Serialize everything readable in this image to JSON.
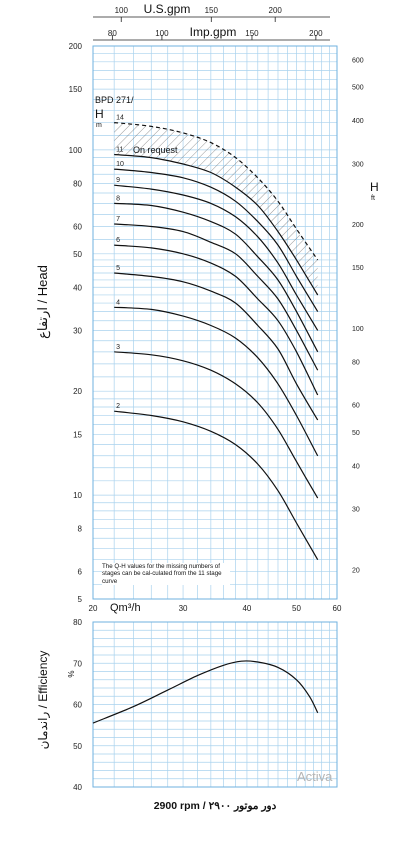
{
  "chart_data": [
    {
      "type": "line",
      "title": "BPD 271/",
      "top_axes": {
        "us_gpm": {
          "label": "U.S.gpm",
          "ticks": [
            100,
            150,
            200
          ]
        },
        "imp_gpm": {
          "label": "Imp.gpm",
          "ticks": [
            80,
            100,
            150,
            200
          ]
        }
      },
      "xlabel": "Qm³/h",
      "xlim": [
        20,
        60
      ],
      "x_ticks": [
        20,
        30,
        40,
        50,
        60
      ],
      "ylabel": "ارتفاع / Head",
      "y_unit_label": "H",
      "y_unit": "m",
      "y_scale": "log",
      "ylim": [
        5,
        200
      ],
      "y_ticks": [
        5,
        6,
        8,
        10,
        15,
        20,
        30,
        40,
        50,
        60,
        80,
        100,
        150,
        200
      ],
      "y2_unit_label": "H",
      "y2_unit": "ft",
      "y2_ticks": [
        20,
        30,
        40,
        50,
        60,
        80,
        100,
        150,
        200,
        300,
        400,
        500,
        600
      ],
      "note_on_request": "On request",
      "note_missing": "The Q-H values for the missing numbers of stages can be cal-culated from the 11 stage curve",
      "series": [
        {
          "name": "14",
          "dashed": true,
          "x": [
            22,
            26,
            30,
            34,
            38,
            42,
            46,
            50,
            55
          ],
          "y": [
            120,
            117,
            112,
            105,
            95,
            83,
            71,
            59,
            48
          ]
        },
        {
          "name": "11",
          "x": [
            22,
            26,
            30,
            34,
            38,
            42,
            46,
            50,
            55
          ],
          "y": [
            97,
            95,
            91,
            86,
            78,
            69,
            58,
            48,
            38
          ]
        },
        {
          "name": "10",
          "x": [
            22,
            26,
            30,
            34,
            38,
            42,
            46,
            50,
            55
          ],
          "y": [
            88,
            86,
            83,
            78,
            71,
            62,
            53,
            43,
            34
          ]
        },
        {
          "name": "9",
          "x": [
            22,
            26,
            30,
            34,
            38,
            42,
            46,
            50,
            55
          ],
          "y": [
            79,
            77,
            74,
            70,
            64,
            56,
            47,
            38,
            30
          ]
        },
        {
          "name": "8",
          "x": [
            22,
            26,
            30,
            34,
            38,
            42,
            46,
            50,
            55
          ],
          "y": [
            70,
            69,
            66,
            62,
            57,
            49,
            42,
            34,
            26
          ]
        },
        {
          "name": "7",
          "x": [
            22,
            26,
            30,
            34,
            38,
            42,
            46,
            50,
            55
          ],
          "y": [
            61,
            60,
            58,
            54,
            50,
            43,
            37,
            30,
            23
          ]
        },
        {
          "name": "6",
          "x": [
            22,
            26,
            30,
            34,
            38,
            42,
            46,
            50,
            55
          ],
          "y": [
            53,
            52,
            50,
            47,
            43,
            37,
            32,
            26,
            19.5
          ]
        },
        {
          "name": "5",
          "x": [
            22,
            26,
            30,
            34,
            38,
            42,
            46,
            50,
            55
          ],
          "y": [
            44,
            43,
            41.5,
            39,
            36,
            31,
            26.5,
            21,
            16.5
          ]
        },
        {
          "name": "4",
          "x": [
            22,
            26,
            30,
            34,
            38,
            42,
            46,
            50,
            55
          ],
          "y": [
            35,
            34.5,
            33,
            31,
            28.5,
            25,
            21,
            17,
            13
          ]
        },
        {
          "name": "3",
          "x": [
            22,
            26,
            30,
            34,
            38,
            42,
            46,
            50,
            55
          ],
          "y": [
            26,
            25.5,
            24.5,
            23,
            21,
            18.5,
            15.5,
            12.5,
            9.8
          ]
        },
        {
          "name": "2",
          "x": [
            22,
            26,
            30,
            34,
            38,
            42,
            46,
            50,
            55
          ],
          "y": [
            17.5,
            17,
            16.3,
            15.3,
            14,
            12.3,
            10.3,
            8.3,
            6.5
          ]
        }
      ],
      "hatch_region": "between 11 and 14"
    },
    {
      "type": "line",
      "ylabel": "راندمان / Efficiency",
      "y_unit": "%",
      "ylim": [
        40,
        80
      ],
      "y_ticks": [
        40,
        50,
        60,
        70,
        80
      ],
      "xlim": [
        20,
        60
      ],
      "series": [
        {
          "name": "",
          "x": [
            20,
            24,
            28,
            32,
            36,
            39,
            42,
            46,
            50,
            53,
            55
          ],
          "y": [
            55.5,
            59.5,
            63.5,
            67,
            69.5,
            70.5,
            70.3,
            69,
            66,
            62,
            58
          ]
        }
      ],
      "footer": "2900 rpm / ۲۹۰۰ دور موتور"
    }
  ],
  "watermark": "Activa"
}
